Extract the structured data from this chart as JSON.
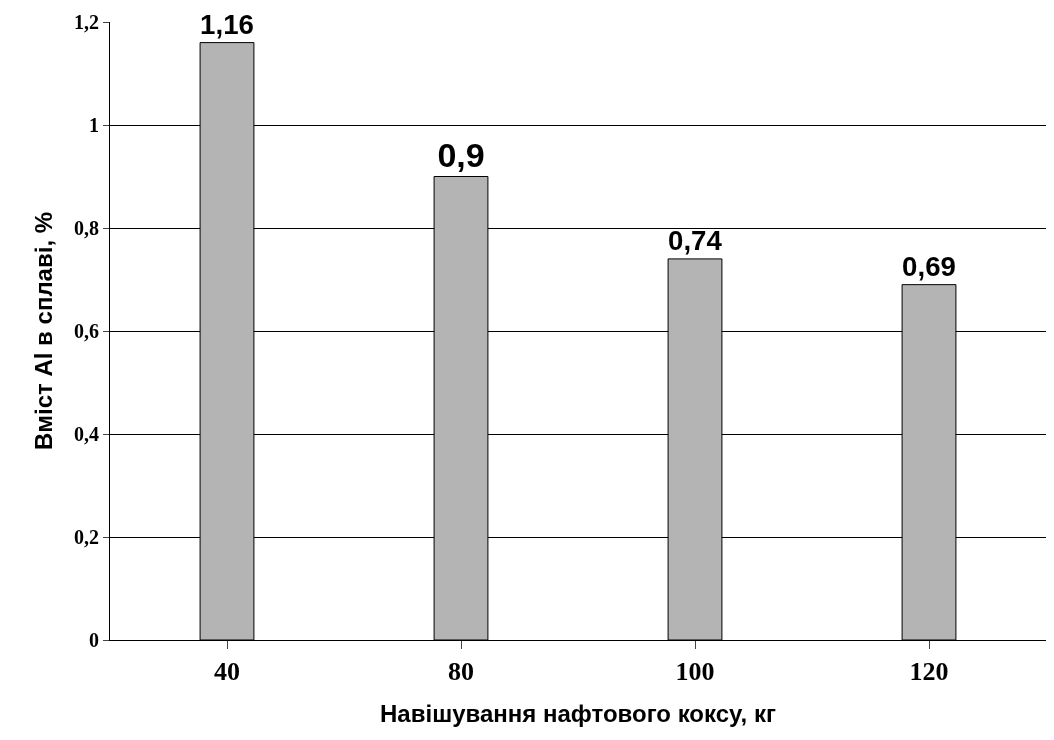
{
  "chart_data": {
    "type": "bar",
    "xlabel": "Навішування нафтового коксу, кг",
    "ylabel": "Вміст Al в сплаві, %",
    "categories": [
      "40",
      "80",
      "100",
      "120"
    ],
    "values": [
      1.16,
      0.9,
      0.74,
      0.69
    ],
    "value_labels": [
      "1,16",
      "0,9",
      "0,74",
      "0,69"
    ],
    "color": "#b4b4b4",
    "ylim": [
      0,
      1.2
    ],
    "yticks": [
      {
        "value": 0,
        "label": "0"
      },
      {
        "value": 0.2,
        "label": "0,2"
      },
      {
        "value": 0.4,
        "label": "0,4"
      },
      {
        "value": 0.6,
        "label": "0,6"
      },
      {
        "value": 0.8,
        "label": "0,8"
      },
      {
        "value": 1,
        "label": "1"
      },
      {
        "value": 1.2,
        "label": "1,2"
      }
    ],
    "grid": "y"
  }
}
